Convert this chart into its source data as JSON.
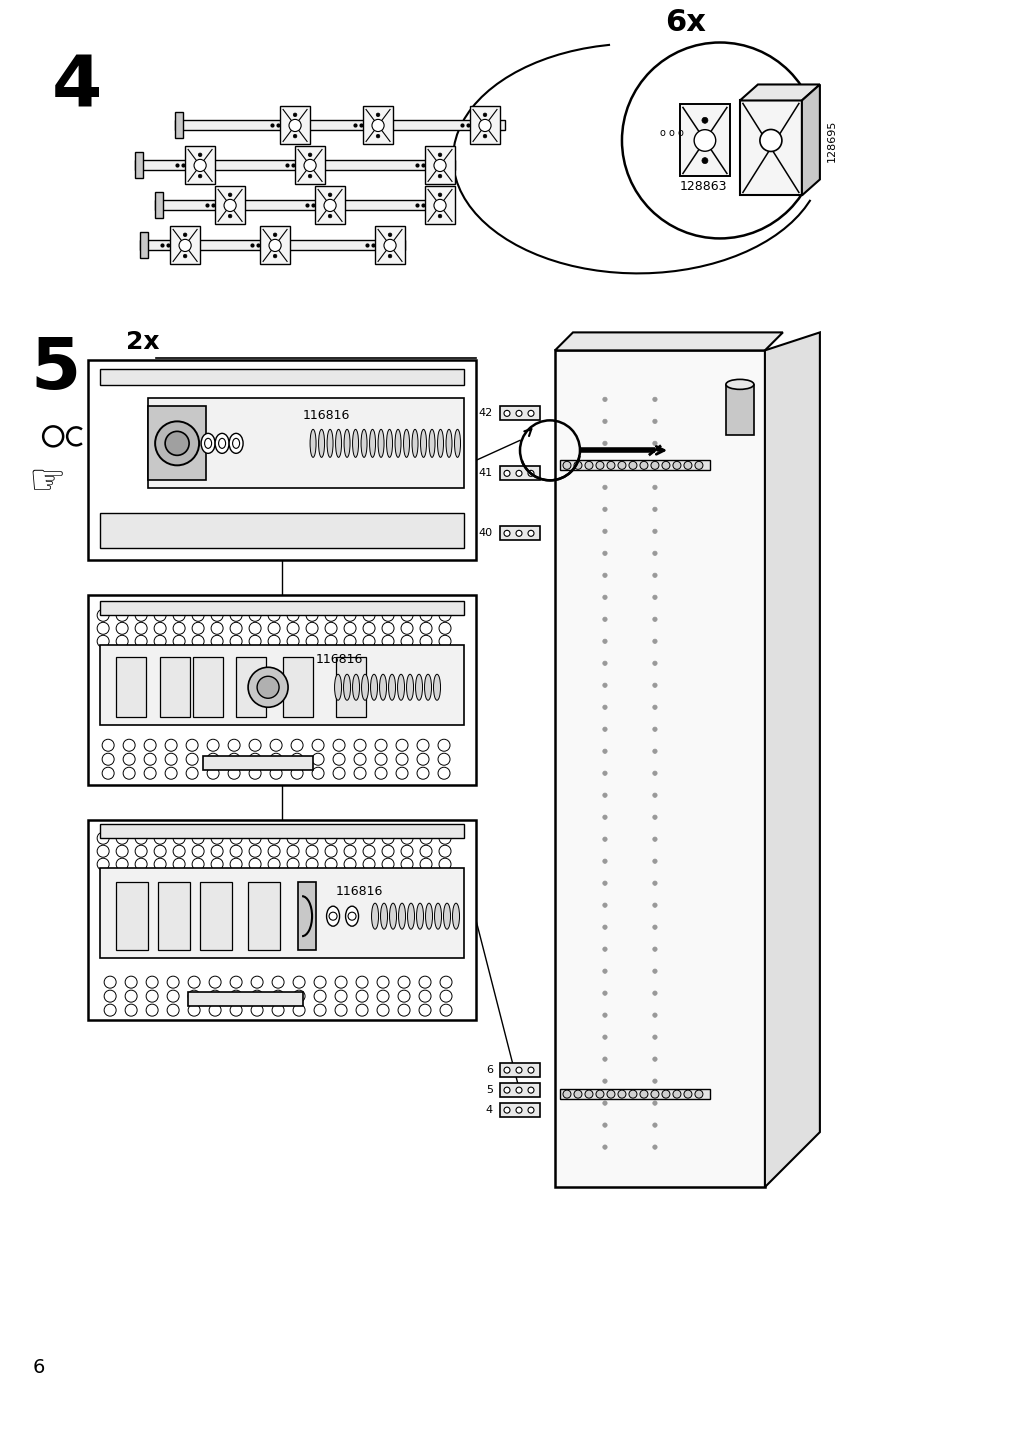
{
  "bg_color": "#ffffff",
  "line_color": "#000000",
  "light_gray": "#e8e8e8",
  "mid_gray": "#c8c8c8",
  "page_number": "6",
  "step4": "4",
  "step5": "5",
  "qty_6x": "6x",
  "qty_2x": "2x",
  "part_128863": "128863",
  "part_128695": "128695",
  "part_116816": "116816",
  "cab_nums_mid": [
    "42",
    "41",
    "40"
  ],
  "cab_nums_bot": [
    "6",
    "5",
    "4"
  ]
}
